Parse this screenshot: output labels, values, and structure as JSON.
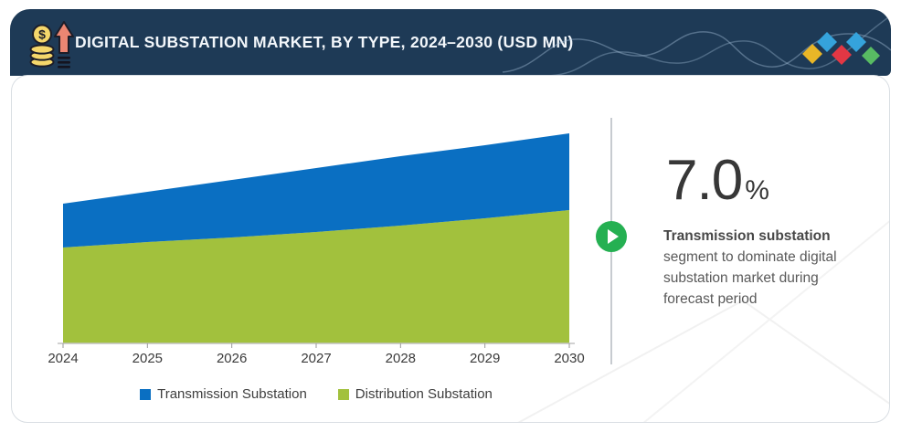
{
  "header": {
    "title": "DIGITAL SUBSTATION MARKET, BY TYPE, 2024–2030 (USD MN)",
    "background_color": "#1e3a56",
    "icon": "money-growth-icon"
  },
  "brand": {
    "logo_colors": [
      "#e9b627",
      "#35a3dc",
      "#e23744",
      "#35a3dc",
      "#58bb63"
    ]
  },
  "chart_data": {
    "type": "area",
    "stacked": true,
    "title": "DIGITAL SUBSTATION MARKET, BY TYPE, 2024–2030 (USD MN)",
    "unit": "USD MN",
    "categories": [
      "2024",
      "2025",
      "2026",
      "2027",
      "2028",
      "2029",
      "2030"
    ],
    "series": [
      {
        "name": "Transmission Substation",
        "color": "#0a6fc2",
        "values": [
          48,
          55,
          63,
          70,
          76,
          80,
          84
        ]
      },
      {
        "name": "Distribution Substation",
        "color": "#a2c13d",
        "values": [
          105,
          111,
          116,
          122,
          129,
          137,
          146
        ]
      }
    ],
    "y_axis_visible": false,
    "values_are_estimates_relative_units": true,
    "legend_position": "bottom",
    "axis_color": "#c2c2c2"
  },
  "callout": {
    "stat_value": "7.0",
    "stat_unit": "%",
    "heading": "Transmission substation",
    "lines": [
      "segment to dominate digital",
      "substation market during",
      "forecast period"
    ],
    "play_button_color": "#25b052"
  }
}
